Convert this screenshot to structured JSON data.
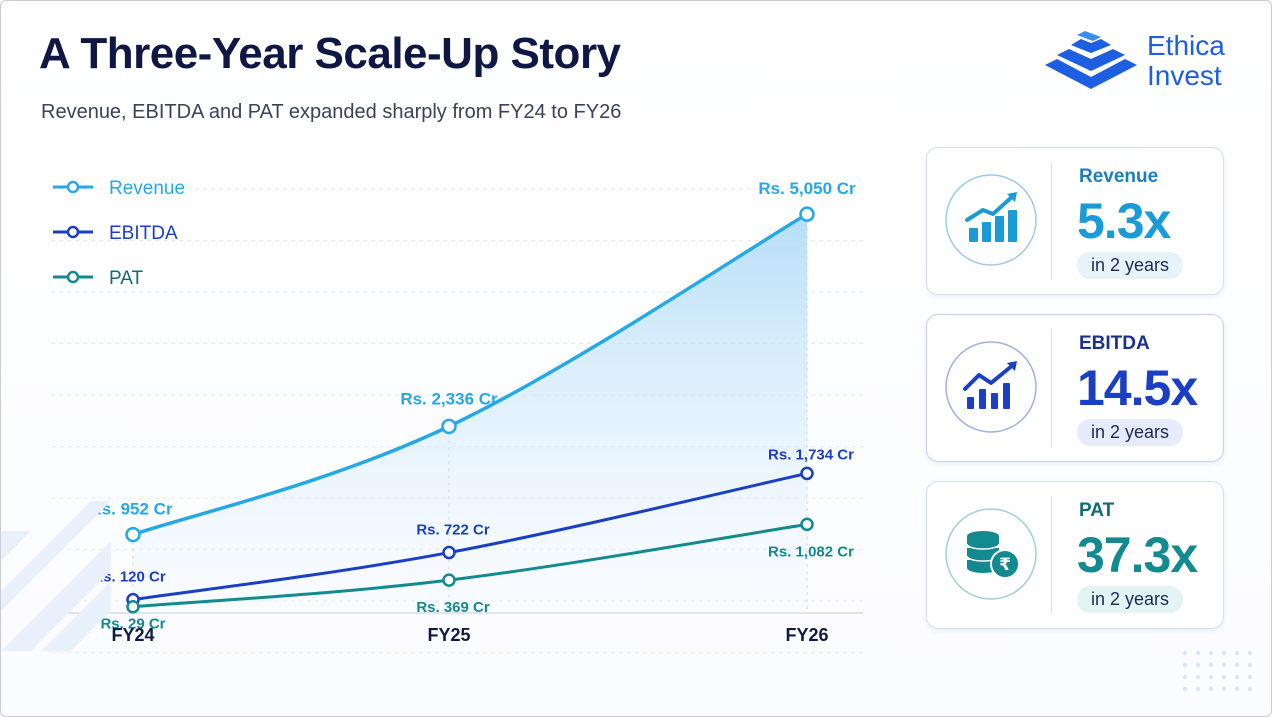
{
  "header": {
    "title": "A Three-Year Scale-Up Story",
    "subtitle": "Revenue, EBITDA and PAT expanded sharply from FY24 to FY26"
  },
  "logo": {
    "line1": "Ethica",
    "line2": "Invest",
    "color": "#1d5fe0"
  },
  "chart_data": {
    "type": "line",
    "title": "",
    "xlabel": "",
    "ylabel": "",
    "categories": [
      "FY24",
      "FY25",
      "FY26"
    ],
    "ylim": [
      0,
      5500
    ],
    "grid": true,
    "legend": "top-left",
    "series": [
      {
        "name": "Revenue",
        "values": [
          952,
          2336,
          5050
        ],
        "labels": [
          "Rs. 952 Cr",
          "Rs. 2,336 Cr",
          "Rs. 5,050 Cr"
        ],
        "color": "#27a8e6",
        "area": true
      },
      {
        "name": "EBITDA",
        "values": [
          120,
          722,
          1734
        ],
        "labels": [
          "Rs. 120 Cr",
          "Rs. 722 Cr",
          "Rs. 1,734 Cr"
        ],
        "color": "#1b3fc4"
      },
      {
        "name": "PAT",
        "values": [
          29,
          369,
          1082
        ],
        "labels": [
          "Rs. 29 Cr",
          "Rs. 369 Cr",
          "Rs. 1,082 Cr"
        ],
        "color": "#138a8f"
      }
    ]
  },
  "cards": [
    {
      "label": "Revenue",
      "value": "5.3x",
      "note": "in 2 years",
      "color": "#1a9ad6",
      "pill_bg": "#e6f3fb",
      "icon": "bar-chart-arrow-icon"
    },
    {
      "label": "EBITDA",
      "value": "14.5x",
      "note": "in 2 years",
      "color": "#1b3fc4",
      "pill_bg": "#e6ecfb",
      "icon": "growth-line-icon"
    },
    {
      "label": "PAT",
      "value": "37.3x",
      "note": "in 2 years",
      "color": "#138a8f",
      "pill_bg": "#e3f4f4",
      "icon": "coin-stack-rupee-icon"
    }
  ]
}
